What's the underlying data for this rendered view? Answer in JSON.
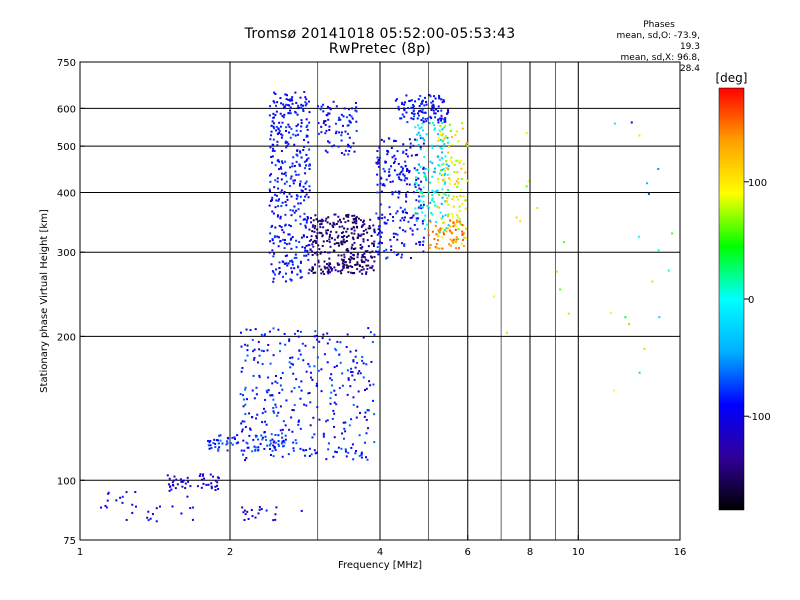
{
  "chart_data": {
    "type": "scatter",
    "title": "Tromsø 20141018 05:52:00-05:53:43",
    "subtitle": "RwPretec (8p)",
    "xlabel": "Frequency [MHz]",
    "ylabel": "Stationary phase Virtual Height [km]",
    "x_scale": "log",
    "y_scale": "log",
    "xlim": [
      1,
      16
    ],
    "ylim": [
      75,
      750
    ],
    "x_ticks": [
      1,
      2,
      4,
      6,
      8,
      10,
      16
    ],
    "x_minor_ticks": [
      3,
      5,
      7,
      9
    ],
    "y_ticks": [
      75,
      100,
      200,
      300,
      400,
      500,
      600,
      750
    ],
    "grid": true,
    "phases_legend": {
      "title": "Phases",
      "o_line": "mean, sd,O: -73.9, 19.3",
      "x_line": "mean, sd,X: 96.8, 28.4"
    },
    "colorbar": {
      "label": "[deg]",
      "range": [
        -180,
        180
      ],
      "ticks": [
        -100,
        0,
        100
      ],
      "colormap": "rainbow",
      "stops": [
        "#000000",
        "#30009a",
        "#0000ff",
        "#00b0ff",
        "#00ffff",
        "#00ff00",
        "#ffff00",
        "#ffa000",
        "#ff0000"
      ]
    },
    "series": [
      {
        "clusters": [
          {
            "f": [
              2.4,
              2.9
            ],
            "h": [
              260,
              650
            ],
            "n": 380,
            "phase": [
              -110,
              -70
            ]
          },
          {
            "f": [
              3.0,
              3.6
            ],
            "h": [
              480,
              620
            ],
            "n": 80,
            "phase": [
              -120,
              -70
            ]
          },
          {
            "f": [
              2.9,
              3.9
            ],
            "h": [
              270,
              360
            ],
            "n": 320,
            "phase": [
              -170,
              -120
            ]
          },
          {
            "f": [
              3.9,
              4.9
            ],
            "h": [
              290,
              520
            ],
            "n": 220,
            "phase": [
              -120,
              -70
            ]
          },
          {
            "f": [
              4.3,
              5.5
            ],
            "h": [
              560,
              640
            ],
            "n": 110,
            "phase": [
              -110,
              -70
            ]
          },
          {
            "f": [
              4.7,
              5.5
            ],
            "h": [
              330,
              560
            ],
            "n": 140,
            "phase": [
              -50,
              20
            ]
          },
          {
            "f": [
              5.2,
              6.0
            ],
            "h": [
              310,
              560
            ],
            "n": 120,
            "phase": [
              60,
              130
            ]
          },
          {
            "f": [
              5.0,
              5.9
            ],
            "h": [
              305,
              350
            ],
            "n": 50,
            "phase": [
              130,
              160
            ]
          },
          {
            "f": [
              2.1,
              3.9
            ],
            "h": [
              110,
              210
            ],
            "n": 340,
            "phase": [
              -120,
              -60
            ]
          },
          {
            "f": [
              1.8,
              2.6
            ],
            "h": [
              115,
              125
            ],
            "n": 80,
            "phase": [
              -100,
              -60
            ]
          },
          {
            "f": [
              1.5,
              1.9
            ],
            "h": [
              95,
              103
            ],
            "n": 50,
            "phase": [
              -130,
              -90
            ]
          },
          {
            "f": [
              1.1,
              1.7
            ],
            "h": [
              82,
              95
            ],
            "n": 30,
            "phase": [
              -130,
              -80
            ]
          },
          {
            "f": [
              2.1,
              2.8
            ],
            "h": [
              82,
              88
            ],
            "n": 20,
            "phase": [
              -120,
              -80
            ]
          },
          {
            "f": [
              11.5,
              15.5
            ],
            "h": [
              130,
              600
            ],
            "n": 18,
            "phase": [
              -110,
              130
            ]
          },
          {
            "f": [
              6.0,
              9.6
            ],
            "h": [
              200,
              560
            ],
            "n": 12,
            "phase": [
              60,
              120
            ]
          }
        ]
      }
    ]
  }
}
